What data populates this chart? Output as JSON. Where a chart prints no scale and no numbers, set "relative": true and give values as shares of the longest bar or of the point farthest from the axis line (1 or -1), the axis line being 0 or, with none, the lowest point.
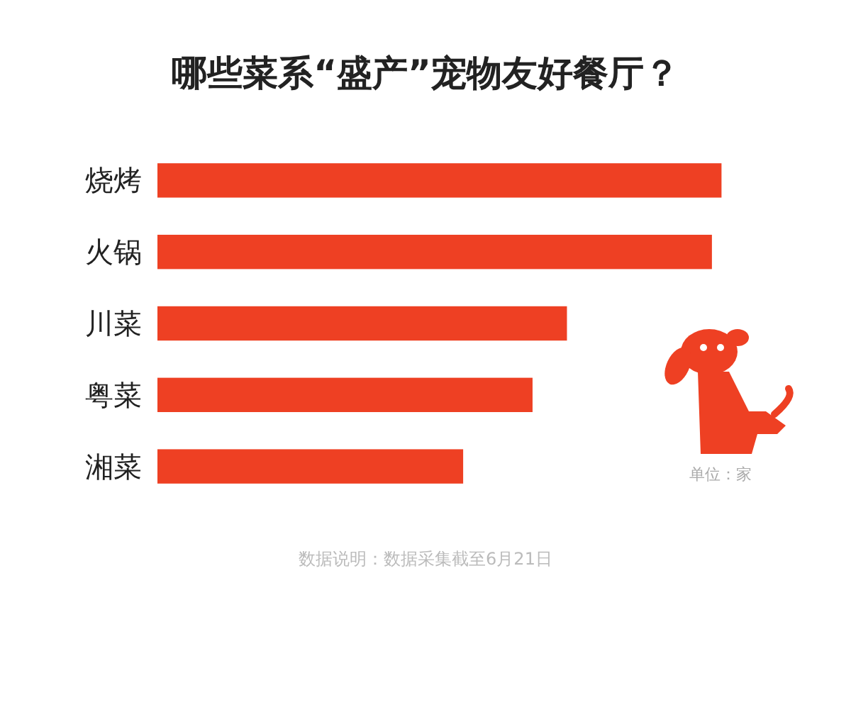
{
  "chart_data": {
    "type": "bar",
    "orientation": "horizontal",
    "relative": true,
    "title": "哪些菜系“盛产”宠物友好餐厅？",
    "categories": [
      "烧烤",
      "火锅",
      "川菜",
      "粤菜",
      "湘菜"
    ],
    "values": [
      1,
      0.983,
      0.726,
      0.665,
      0.542
    ],
    "color": "#ee4023",
    "annotations": [
      "单位：家",
      "数据说明：数据采集截至6月21日"
    ]
  }
}
